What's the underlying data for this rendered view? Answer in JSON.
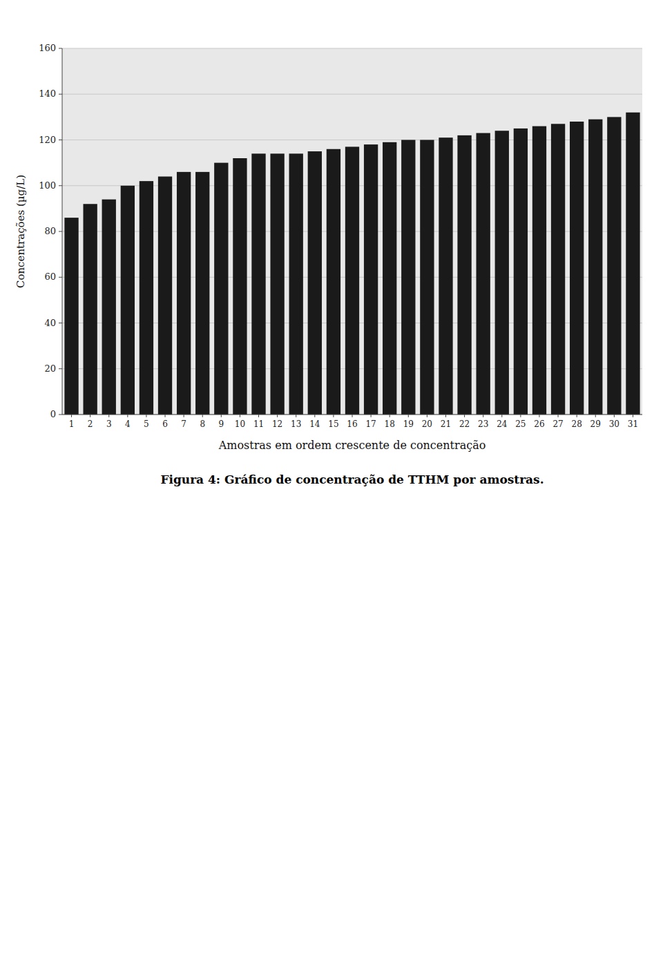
{
  "chart_data": {
    "type": "bar",
    "title": "Figura 4: Gráfico de concentração de TTHM por amostras.",
    "xlabel": "Amostras em ordem crescente de concentração",
    "ylabel": "Concentrações (µg/L)",
    "categories": [
      "1",
      "2",
      "3",
      "4",
      "5",
      "6",
      "7",
      "8",
      "9",
      "10",
      "11",
      "12",
      "13",
      "14",
      "15",
      "16",
      "17",
      "18",
      "19",
      "20",
      "21",
      "22",
      "23",
      "24",
      "25",
      "26",
      "27",
      "28",
      "29",
      "30",
      "31"
    ],
    "values": [
      86,
      92,
      94,
      100,
      102,
      104,
      106,
      106,
      110,
      112,
      114,
      114,
      114,
      115,
      116,
      117,
      118,
      119,
      120,
      120,
      121,
      122,
      123,
      124,
      125,
      126,
      127,
      128,
      129,
      130,
      132
    ],
    "color": "#1a1a1a",
    "ylim": [
      0,
      160
    ],
    "yticks": [
      0,
      20,
      40,
      60,
      80,
      100,
      120,
      140,
      160
    ],
    "grid": true
  }
}
